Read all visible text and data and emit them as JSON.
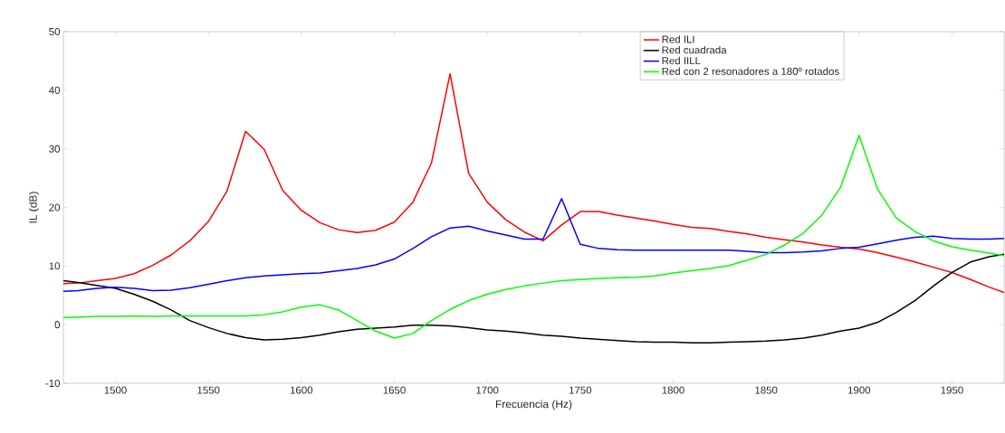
{
  "chart_data": {
    "type": "line",
    "xlabel": "Frecuencia (Hz)",
    "ylabel": "IL (dB)",
    "x": [
      1472,
      1480,
      1490,
      1500,
      1510,
      1520,
      1530,
      1540,
      1550,
      1560,
      1570,
      1580,
      1590,
      1600,
      1610,
      1620,
      1630,
      1640,
      1650,
      1660,
      1670,
      1680,
      1690,
      1700,
      1710,
      1720,
      1730,
      1740,
      1750,
      1760,
      1770,
      1780,
      1790,
      1800,
      1810,
      1820,
      1830,
      1840,
      1850,
      1860,
      1870,
      1880,
      1890,
      1900,
      1910,
      1920,
      1930,
      1940,
      1950,
      1960,
      1970,
      1978
    ],
    "series": [
      {
        "name": "Red ILI",
        "color": "#ff0000",
        "values": [
          7.0,
          7.1,
          7.5,
          7.9,
          8.7,
          10.1,
          11.9,
          14.3,
          17.6,
          22.8,
          33.0,
          29.9,
          22.9,
          19.5,
          17.4,
          16.2,
          15.7,
          16.1,
          17.5,
          20.9,
          27.6,
          42.8,
          25.8,
          20.9,
          17.9,
          15.8,
          14.3,
          17.0,
          19.3,
          19.3,
          18.7,
          18.2,
          17.7,
          17.1,
          16.6,
          16.4,
          15.9,
          15.5,
          14.9,
          14.5,
          14.1,
          13.6,
          13.2,
          12.9,
          12.3,
          11.5,
          10.7,
          9.8,
          8.9,
          7.7,
          6.4,
          5.5
        ]
      },
      {
        "name": "Red cuadrada",
        "color": "#000000",
        "values": [
          7.5,
          7.2,
          6.7,
          6.2,
          5.2,
          4.0,
          2.5,
          0.7,
          -0.5,
          -1.5,
          -2.2,
          -2.6,
          -2.5,
          -2.2,
          -1.8,
          -1.2,
          -0.8,
          -0.6,
          -0.4,
          -0.1,
          -0.1,
          -0.2,
          -0.5,
          -0.9,
          -1.1,
          -1.4,
          -1.8,
          -2.0,
          -2.3,
          -2.5,
          -2.7,
          -2.9,
          -3.0,
          -3.0,
          -3.1,
          -3.1,
          -3.0,
          -2.9,
          -2.8,
          -2.6,
          -2.3,
          -1.8,
          -1.1,
          -0.6,
          0.4,
          2.1,
          4.1,
          6.6,
          8.9,
          10.7,
          11.6,
          12.0
        ]
      },
      {
        "name": "Red IILL",
        "color": "#0000ff",
        "values": [
          5.7,
          5.8,
          6.2,
          6.4,
          6.2,
          5.8,
          5.9,
          6.3,
          6.9,
          7.5,
          8.0,
          8.3,
          8.5,
          8.7,
          8.8,
          9.2,
          9.6,
          10.2,
          11.2,
          13.0,
          15.0,
          16.5,
          16.8,
          16.0,
          15.3,
          14.6,
          14.6,
          21.5,
          13.7,
          13.0,
          12.8,
          12.7,
          12.7,
          12.7,
          12.7,
          12.7,
          12.7,
          12.5,
          12.3,
          12.3,
          12.4,
          12.6,
          13.0,
          13.2,
          13.8,
          14.4,
          14.9,
          15.1,
          14.7,
          14.6,
          14.6,
          14.7
        ]
      },
      {
        "name": "Red con 2 resonadores a 180º rotados",
        "color": "#00ff00",
        "values": [
          1.2,
          1.3,
          1.4,
          1.4,
          1.5,
          1.4,
          1.5,
          1.5,
          1.5,
          1.5,
          1.5,
          1.7,
          2.2,
          3.0,
          3.4,
          2.5,
          0.7,
          -1.1,
          -2.3,
          -1.5,
          0.7,
          2.6,
          4.1,
          5.2,
          6.0,
          6.6,
          7.1,
          7.5,
          7.7,
          7.9,
          8.0,
          8.1,
          8.3,
          8.8,
          9.2,
          9.6,
          10.1,
          11.0,
          12.0,
          13.6,
          15.6,
          18.7,
          23.4,
          32.3,
          23.1,
          18.2,
          15.9,
          14.3,
          13.3,
          12.7,
          12.2,
          11.8
        ]
      }
    ],
    "xlim": [
      1472,
      1978
    ],
    "ylim": [
      -10,
      50
    ],
    "xticks": [
      1500,
      1550,
      1600,
      1650,
      1700,
      1750,
      1800,
      1850,
      1900,
      1950
    ],
    "yticks": [
      -10,
      0,
      10,
      20,
      30,
      40,
      50
    ],
    "legend": "top right",
    "grid": false,
    "marker": "none",
    "line_style": "solid"
  }
}
